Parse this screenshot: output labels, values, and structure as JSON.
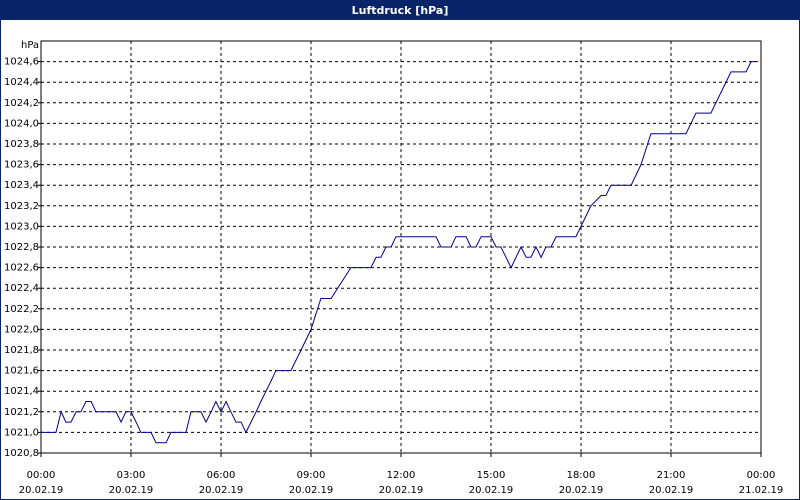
{
  "chart_data": {
    "type": "line",
    "title": "Luftdruck [hPa]",
    "y_unit": "hPa",
    "xlim": [
      0,
      24
    ],
    "xticks": [
      {
        "value": 0,
        "label": "00:00"
      },
      {
        "value": 3,
        "label": "03:00"
      },
      {
        "value": 6,
        "label": "06:00"
      },
      {
        "value": 9,
        "label": "09:00"
      },
      {
        "value": 12,
        "label": "12:00"
      },
      {
        "value": 15,
        "label": "15:00"
      },
      {
        "value": 18,
        "label": "18:00"
      },
      {
        "value": 21,
        "label": "21:00"
      },
      {
        "value": 24,
        "label": "00:00"
      }
    ],
    "x_tick_dates": [
      "20.02.19",
      "20.02.19",
      "20.02.19",
      "20.02.19",
      "20.02.19",
      "20.02.19",
      "20.02.19",
      "20.02.19",
      "21.02.19"
    ],
    "ylim": [
      1020.8,
      1024.8
    ],
    "yticks": [
      {
        "value": 1020.8,
        "label": "1020,8"
      },
      {
        "value": 1021.0,
        "label": "1021,0"
      },
      {
        "value": 1021.2,
        "label": "1021,2"
      },
      {
        "value": 1021.4,
        "label": "1021,4"
      },
      {
        "value": 1021.6,
        "label": "1021,6"
      },
      {
        "value": 1021.8,
        "label": "1021,8"
      },
      {
        "value": 1022.0,
        "label": "1022,0"
      },
      {
        "value": 1022.2,
        "label": "1022,2"
      },
      {
        "value": 1022.4,
        "label": "1022,4"
      },
      {
        "value": 1022.6,
        "label": "1022,6"
      },
      {
        "value": 1022.8,
        "label": "1022,8"
      },
      {
        "value": 1023.0,
        "label": "1023,0"
      },
      {
        "value": 1023.2,
        "label": "1023,2"
      },
      {
        "value": 1023.4,
        "label": "1023,4"
      },
      {
        "value": 1023.6,
        "label": "1023,6"
      },
      {
        "value": 1023.8,
        "label": "1023,8"
      },
      {
        "value": 1024.0,
        "label": "1024,0"
      },
      {
        "value": 1024.2,
        "label": "1024,2"
      },
      {
        "value": 1024.4,
        "label": "1024,4"
      },
      {
        "value": 1024.6,
        "label": "1024,6"
      }
    ],
    "grid": true,
    "color": "#00008b",
    "x": [
      0,
      0.5,
      0.67,
      0.83,
      1,
      1.17,
      1.33,
      1.5,
      1.67,
      1.83,
      2.5,
      2.67,
      2.83,
      3,
      3.17,
      3.33,
      3.67,
      3.83,
      4.17,
      4.33,
      4.83,
      5,
      5.33,
      5.5,
      5.67,
      5.83,
      6,
      6.17,
      6.33,
      6.5,
      6.67,
      6.83,
      7,
      7.17,
      7.33,
      7.5,
      7.67,
      7.83,
      8,
      8.33,
      8.67,
      9,
      9.33,
      9.67,
      10.33,
      11,
      11.17,
      11.33,
      11.5,
      11.67,
      11.83,
      13.17,
      13.33,
      13.67,
      13.83,
      14.17,
      14.33,
      14.5,
      14.67,
      15,
      15.17,
      15.33,
      15.67,
      16,
      16.17,
      16.33,
      16.5,
      16.67,
      16.83,
      17,
      17.17,
      17.83,
      18,
      18.33,
      18.67,
      18.83,
      19,
      19.67,
      20,
      20.33,
      21.5,
      21.83,
      22.33,
      23,
      23.5,
      23.67,
      23.83
    ],
    "values": [
      1021.0,
      1021.0,
      1021.2,
      1021.1,
      1021.1,
      1021.2,
      1021.2,
      1021.3,
      1021.3,
      1021.2,
      1021.2,
      1021.1,
      1021.2,
      1021.2,
      1021.1,
      1021.0,
      1021.0,
      1020.9,
      1020.9,
      1021.0,
      1021.0,
      1021.2,
      1021.2,
      1021.1,
      1021.2,
      1021.3,
      1021.2,
      1021.3,
      1021.2,
      1021.1,
      1021.1,
      1021.0,
      1021.1,
      1021.2,
      1021.3,
      1021.4,
      1021.5,
      1021.6,
      1021.6,
      1021.6,
      1021.8,
      1022.0,
      1022.3,
      1022.3,
      1022.6,
      1022.6,
      1022.7,
      1022.7,
      1022.8,
      1022.8,
      1022.9,
      1022.9,
      1022.8,
      1022.8,
      1022.9,
      1022.9,
      1022.8,
      1022.8,
      1022.9,
      1022.9,
      1022.8,
      1022.8,
      1022.6,
      1022.8,
      1022.7,
      1022.7,
      1022.8,
      1022.7,
      1022.8,
      1022.8,
      1022.9,
      1022.9,
      1023.0,
      1023.2,
      1023.3,
      1023.3,
      1023.4,
      1023.4,
      1023.6,
      1023.9,
      1023.9,
      1024.1,
      1024.1,
      1024.5,
      1024.5,
      1024.6,
      1024.6
    ]
  }
}
